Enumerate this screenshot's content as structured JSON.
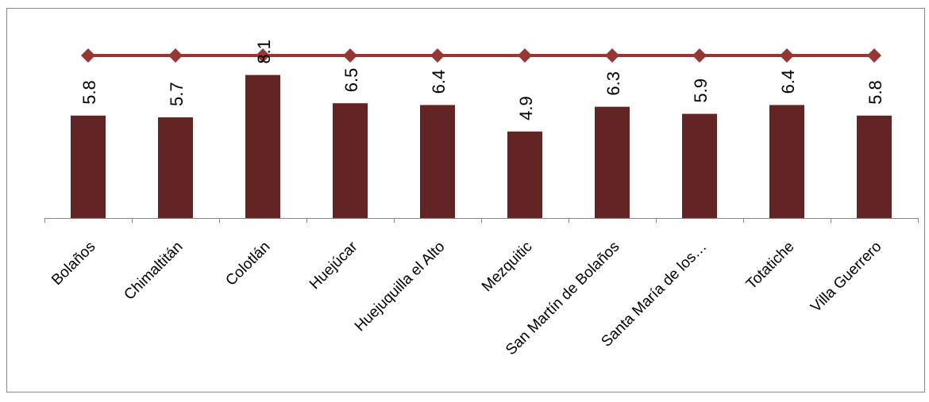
{
  "chart_data": {
    "type": "bar",
    "title": "",
    "xlabel": "",
    "ylabel": "",
    "categories": [
      "Bolaños",
      "Chimaltitán",
      "Colotlán",
      "Huejúcar",
      "Huejuquilla el Alto",
      "Mezquitic",
      "San Martín de Bolaños",
      "Santa María de los…",
      "Totatiche",
      "Villa Guerrero"
    ],
    "series": [
      {
        "type": "bar",
        "values": [
          5.8,
          5.7,
          8.1,
          6.5,
          6.4,
          4.9,
          6.3,
          5.9,
          6.4,
          5.8
        ],
        "labels": [
          "5.8",
          "5.7",
          "8.1",
          "6.5",
          "6.4",
          "4.9",
          "6.3",
          "5.9",
          "6.4",
          "5.8"
        ],
        "color": "#632523"
      },
      {
        "type": "line",
        "values": [
          9.2,
          9.2,
          9.2,
          9.2,
          9.2,
          9.2,
          9.2,
          9.2,
          9.2,
          9.2
        ],
        "color": "#953735",
        "marker": "diamond"
      }
    ],
    "ylim": [
      0,
      10.1
    ],
    "grid": false,
    "legend": "none",
    "y_axis_visible": false
  }
}
